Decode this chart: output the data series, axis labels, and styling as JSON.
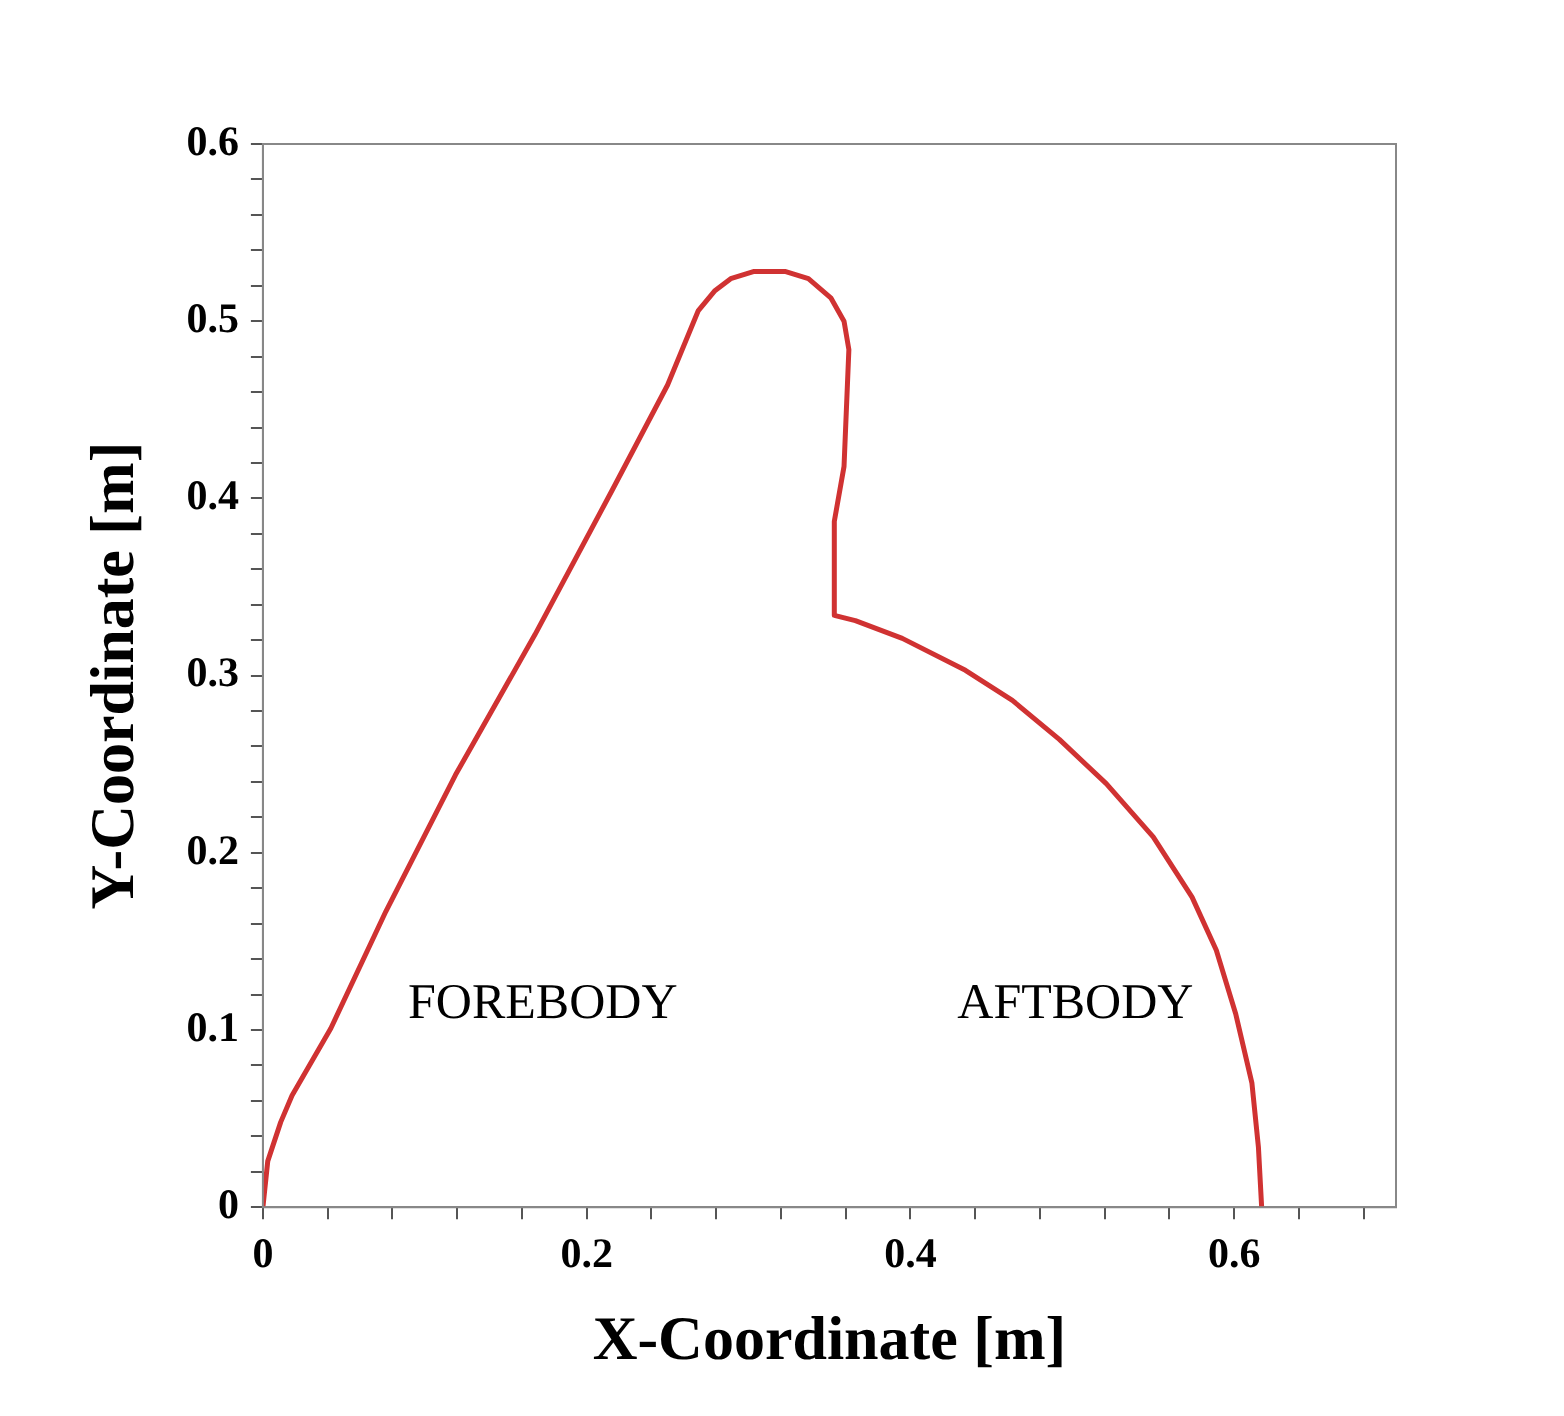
{
  "chart_data": {
    "type": "line",
    "xlabel": "X-Coordinate [m]",
    "ylabel": "Y-Coordinate [m]",
    "series": [
      {
        "color": "#d03232",
        "x": [
          0,
          0.003,
          0.011,
          0.018,
          0.042,
          0.076,
          0.119,
          0.168,
          0.216,
          0.25,
          0.269,
          0.279,
          0.289,
          0.303,
          0.323,
          0.337,
          0.351,
          0.359,
          0.362,
          0.359,
          0.353,
          0.353,
          0.366,
          0.395,
          0.434,
          0.463,
          0.492,
          0.521,
          0.55,
          0.574,
          0.589,
          0.601,
          0.611,
          0.615,
          0.617
        ],
        "values": [
          0,
          0.026,
          0.048,
          0.063,
          0.101,
          0.167,
          0.244,
          0.323,
          0.405,
          0.464,
          0.506,
          0.517,
          0.524,
          0.528,
          0.528,
          0.524,
          0.513,
          0.5,
          0.484,
          0.418,
          0.387,
          0.334,
          0.331,
          0.321,
          0.303,
          0.286,
          0.264,
          0.239,
          0.209,
          0.175,
          0.145,
          0.109,
          0.07,
          0.034,
          0
        ]
      }
    ],
    "xlim": [
      0,
      0.7
    ],
    "xticks": [
      0,
      {
        "value": 0.04,
        "label": null
      },
      {
        "value": 0.08,
        "label": null
      },
      {
        "value": 0.12,
        "label": null
      },
      {
        "value": 0.16,
        "label": null
      },
      0.2,
      {
        "value": 0.24,
        "label": null
      },
      {
        "value": 0.28,
        "label": null
      },
      {
        "value": 0.32,
        "label": null
      },
      {
        "value": 0.36,
        "label": null
      },
      0.4,
      {
        "value": 0.44,
        "label": null
      },
      {
        "value": 0.48,
        "label": null
      },
      {
        "value": 0.52,
        "label": null
      },
      {
        "value": 0.56,
        "label": null
      },
      0.6,
      {
        "value": 0.64,
        "label": null
      },
      {
        "value": 0.68,
        "label": null
      }
    ],
    "ylim": [
      0,
      0.6
    ],
    "yticks": [
      0,
      {
        "value": 0.02,
        "label": null
      },
      {
        "value": 0.04,
        "label": null
      },
      {
        "value": 0.06,
        "label": null
      },
      {
        "value": 0.08,
        "label": null
      },
      0.1,
      {
        "value": 0.12,
        "label": null
      },
      {
        "value": 0.14,
        "label": null
      },
      {
        "value": 0.16,
        "label": null
      },
      {
        "value": 0.18,
        "label": null
      },
      0.2,
      {
        "value": 0.22,
        "label": null
      },
      {
        "value": 0.24,
        "label": null
      },
      {
        "value": 0.26,
        "label": null
      },
      {
        "value": 0.28,
        "label": null
      },
      0.3,
      {
        "value": 0.32,
        "label": null
      },
      {
        "value": 0.34,
        "label": null
      },
      {
        "value": 0.36,
        "label": null
      },
      {
        "value": 0.38,
        "label": null
      },
      0.4,
      {
        "value": 0.42,
        "label": null
      },
      {
        "value": 0.44,
        "label": null
      },
      {
        "value": 0.46,
        "label": null
      },
      {
        "value": 0.48,
        "label": null
      },
      0.5,
      {
        "value": 0.52,
        "label": null
      },
      {
        "value": 0.54,
        "label": null
      },
      {
        "value": 0.56,
        "label": null
      },
      {
        "value": 0.58,
        "label": null
      },
      0.6
    ],
    "annotations": [
      "FOREBODY",
      "AFTBODY"
    ],
    "grid": false,
    "legend": false,
    "marker": "none",
    "line_style": "solid"
  }
}
